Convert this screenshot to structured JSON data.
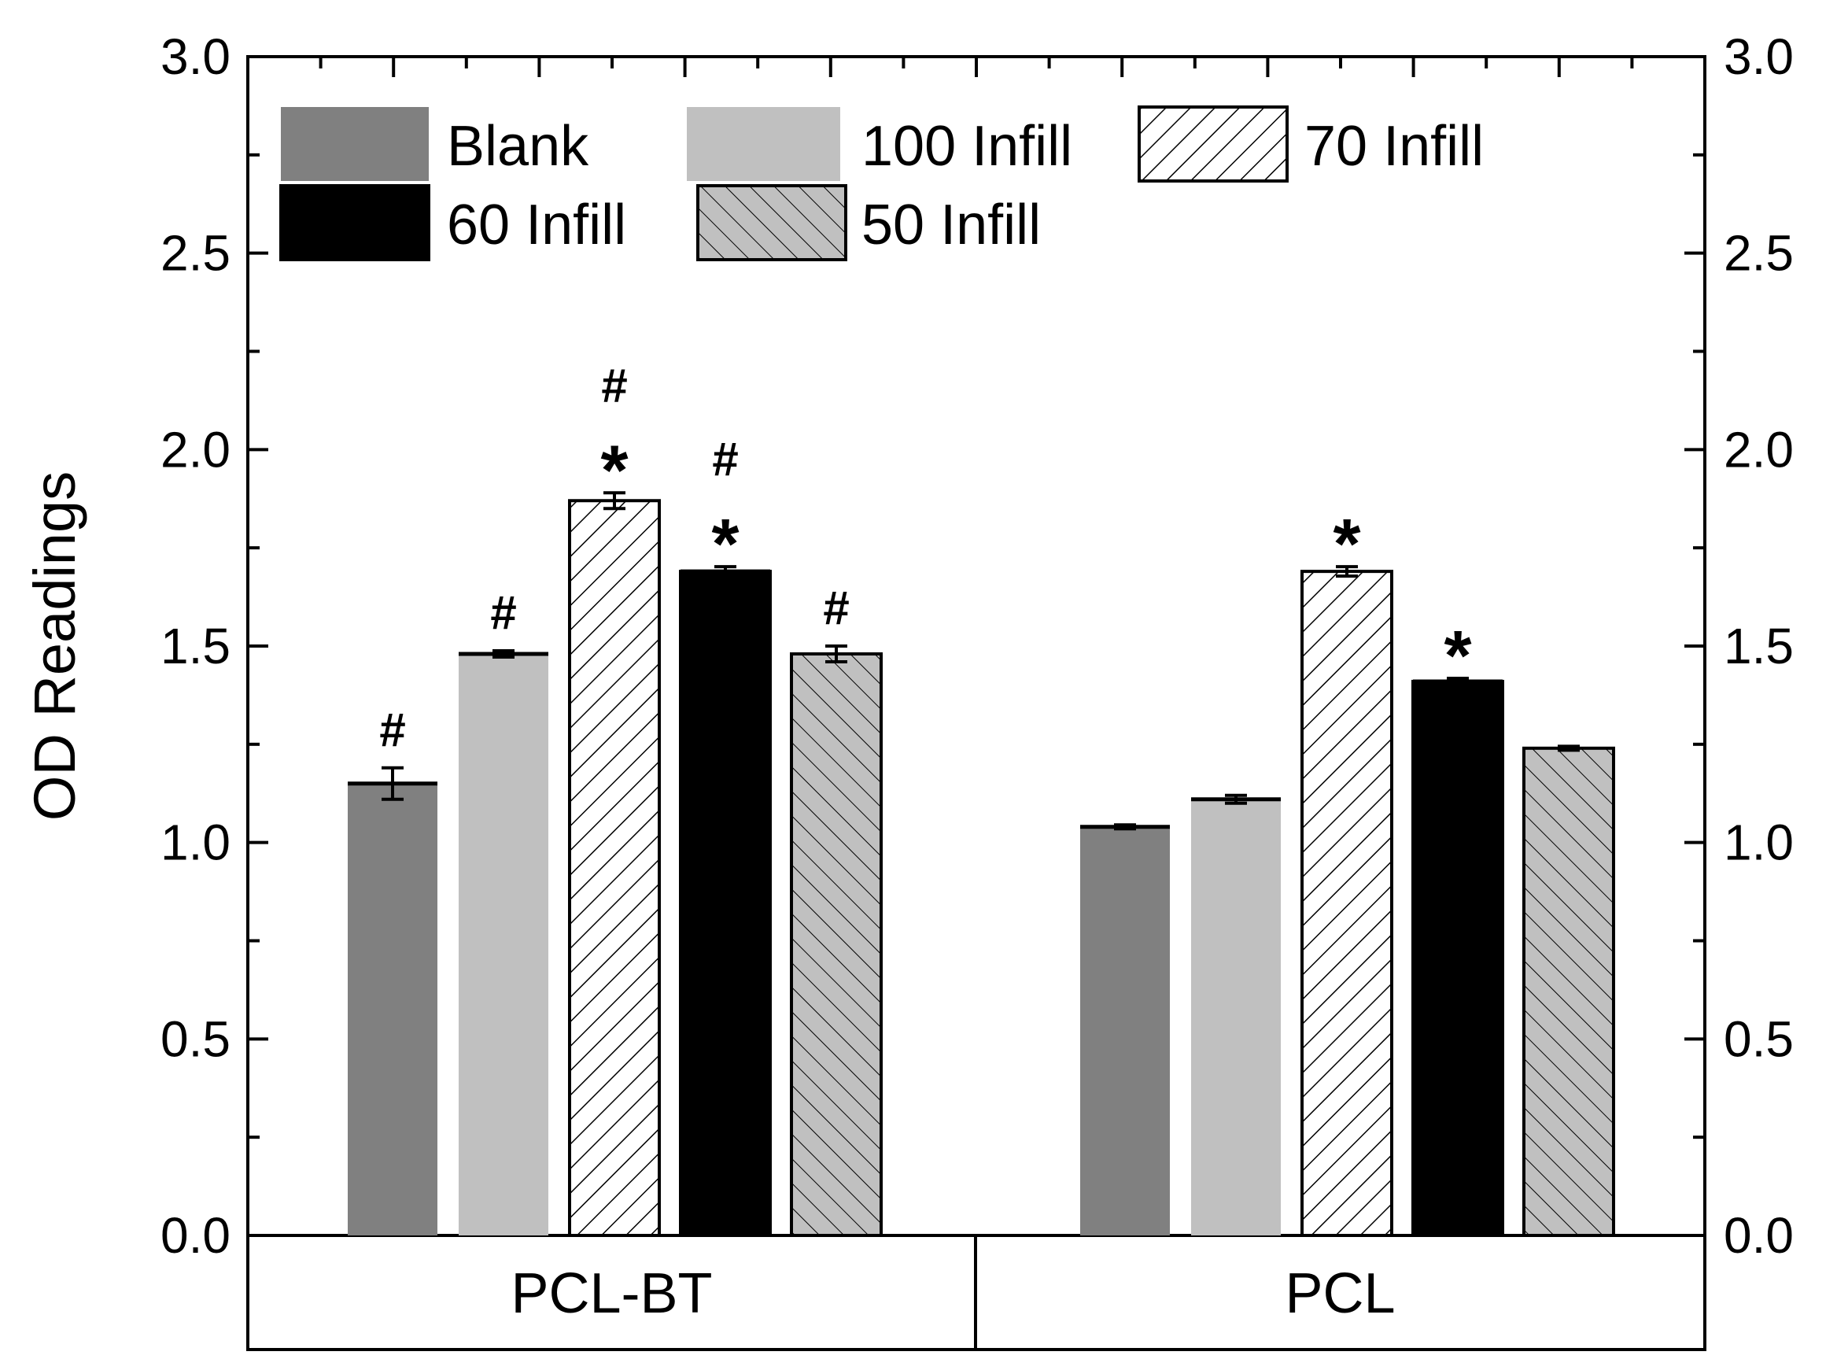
{
  "chart_data": {
    "type": "bar",
    "ylabel": "OD Readings",
    "ylim": [
      0,
      3.0
    ],
    "yticks": [
      "0.0",
      "0.5",
      "1.0",
      "1.5",
      "2.0",
      "2.5",
      "3.0"
    ],
    "categories": [
      "PCL-BT",
      "PCL"
    ],
    "legend_position": "top-left",
    "series": [
      {
        "name": "Blank",
        "values": [
          1.15,
          1.04
        ],
        "errors": [
          0.04,
          0.005
        ],
        "style": "solid",
        "color": "#808080",
        "marks": [
          "#",
          ""
        ]
      },
      {
        "name": "100 Infill",
        "values": [
          1.48,
          1.11
        ],
        "errors": [
          0.008,
          0.01
        ],
        "style": "solid",
        "color": "#c0c0c0",
        "marks": [
          "#",
          ""
        ]
      },
      {
        "name": "70 Infill",
        "values": [
          1.87,
          1.69
        ],
        "errors": [
          0.02,
          0.012
        ],
        "style": "hatch",
        "color": "#ffffff",
        "marks": [
          "# *",
          "*"
        ]
      },
      {
        "name": "60 Infill",
        "values": [
          1.69,
          1.41
        ],
        "errors": [
          0.012,
          0.008
        ],
        "style": "solid",
        "color": "#000000",
        "marks": [
          "# *",
          "*"
        ]
      },
      {
        "name": "50 Infill",
        "values": [
          1.48,
          1.24
        ],
        "errors": [
          0.02,
          0.005
        ],
        "style": "hatch-back",
        "color": "#c0c0c0",
        "marks": [
          "#",
          ""
        ]
      }
    ]
  }
}
